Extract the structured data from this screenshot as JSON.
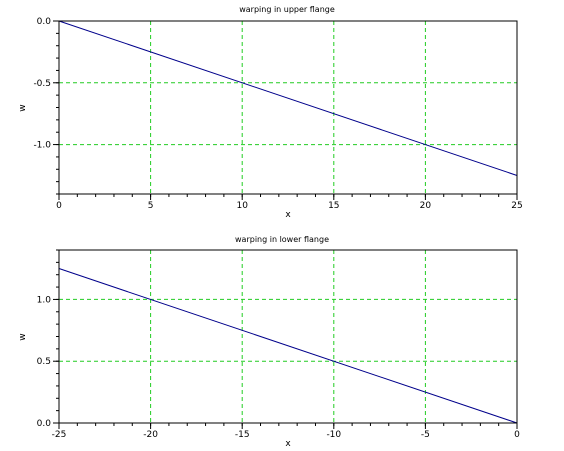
{
  "chart_data": [
    {
      "type": "line",
      "title": "warping in upper flange",
      "xlabel": "x",
      "ylabel": "w",
      "xlim": [
        0,
        25
      ],
      "ylim": [
        -1.4,
        0.0
      ],
      "xticks": [
        0,
        5,
        10,
        15,
        20,
        25
      ],
      "xtick_labels": [
        "0",
        "5",
        "10",
        "15",
        "20",
        "25"
      ],
      "yticks": [
        0.0,
        -0.5,
        -1.0
      ],
      "ytick_labels": [
        "0.0",
        "-0.5",
        "-1.0"
      ],
      "grid": true,
      "grid_color": "#22cc22",
      "series": [
        {
          "color": "#00008b",
          "x": [
            0,
            25
          ],
          "y": [
            0.0,
            -1.25
          ]
        }
      ]
    },
    {
      "type": "line",
      "title": "warping in lower flange",
      "xlabel": "x",
      "ylabel": "w",
      "xlim": [
        -25,
        0
      ],
      "ylim": [
        0.0,
        1.4
      ],
      "xticks": [
        -25,
        -20,
        -15,
        -10,
        -5,
        0
      ],
      "xtick_labels": [
        "-25",
        "-20",
        "-15",
        "-10",
        "-5",
        "0"
      ],
      "yticks": [
        0.0,
        0.5,
        1.0
      ],
      "ytick_labels": [
        "0.0",
        "0.5",
        "1.0"
      ],
      "grid": true,
      "grid_color": "#22cc22",
      "series": [
        {
          "color": "#00008b",
          "x": [
            -25,
            0
          ],
          "y": [
            1.25,
            0.0
          ]
        }
      ]
    }
  ]
}
